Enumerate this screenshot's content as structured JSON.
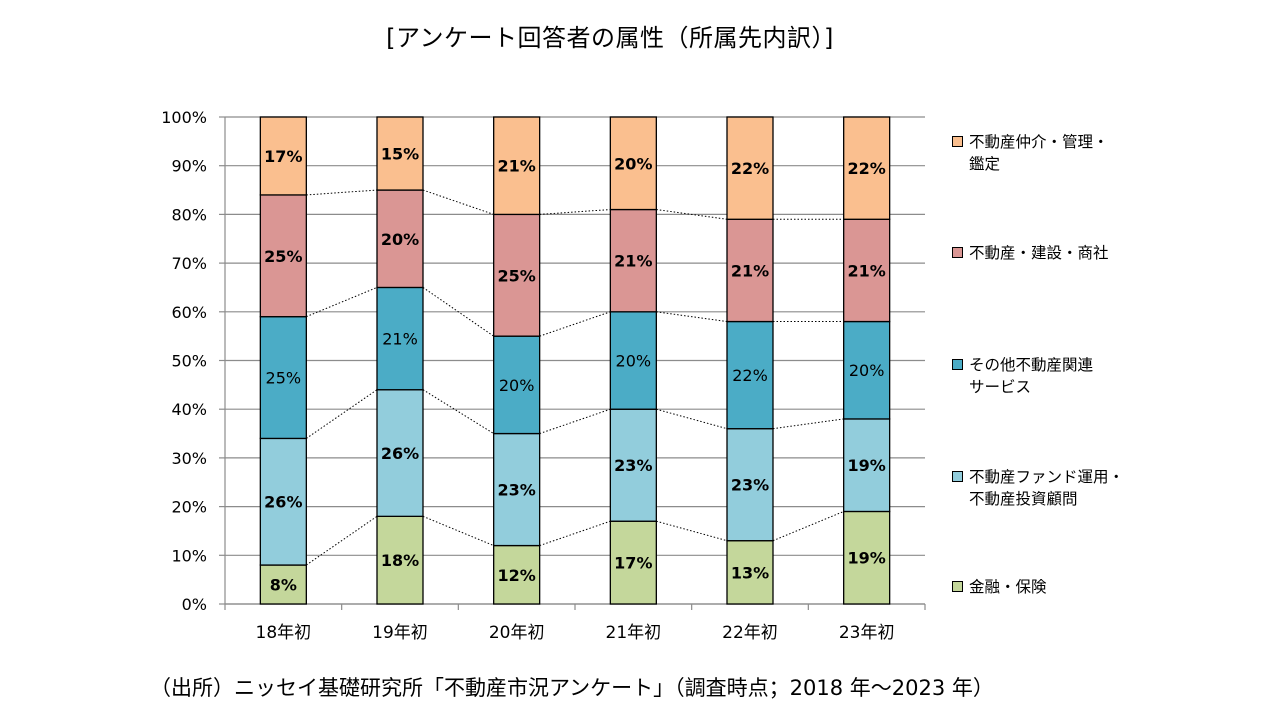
{
  "chart_data": {
    "type": "bar",
    "stacked": true,
    "title": "[アンケート回答者の属性（所属先内訳）]",
    "categories": [
      "18年初",
      "19年初",
      "20年初",
      "21年初",
      "22年初",
      "23年初"
    ],
    "ylim": [
      0,
      100
    ],
    "yticks": [
      "0%",
      "10%",
      "20%",
      "30%",
      "40%",
      "50%",
      "60%",
      "70%",
      "80%",
      "90%",
      "100%"
    ],
    "grid": true,
    "legend_position": "right",
    "series": [
      {
        "name": "金融・保険",
        "color": "#c4d79b",
        "bold": true,
        "values": [
          8,
          18,
          12,
          17,
          13,
          19
        ],
        "labels": [
          "8%",
          "18%",
          "12%",
          "17%",
          "13%",
          "19%"
        ]
      },
      {
        "name": "不動産ファンド運用・\n不動産投資顧問",
        "color": "#92cddc",
        "bold": true,
        "values": [
          26,
          26,
          23,
          23,
          23,
          19
        ],
        "labels": [
          "26%",
          "26%",
          "23%",
          "23%",
          "23%",
          "19%"
        ]
      },
      {
        "name": "その他不動産関連\nサービス",
        "color": "#4bacc6",
        "bold": false,
        "values": [
          25,
          21,
          20,
          20,
          22,
          20
        ],
        "labels": [
          "25%",
          "21%",
          "20%",
          "20%",
          "22%",
          "20%"
        ]
      },
      {
        "name": "不動産・建設・商社",
        "color": "#da9694",
        "bold": true,
        "values": [
          25,
          20,
          25,
          21,
          21,
          21
        ],
        "labels": [
          "25%",
          "20%",
          "25%",
          "21%",
          "21%",
          "21%"
        ]
      },
      {
        "name": "不動産仲介・管理・\n鑑定",
        "color": "#fabf8f",
        "bold": true,
        "values": [
          17,
          15,
          21,
          20,
          22,
          22
        ],
        "labels": [
          "17%",
          "15%",
          "21%",
          "20%",
          "22%",
          "22%"
        ]
      }
    ]
  },
  "source_note": "（出所）ニッセイ基礎研究所「不動産市況アンケート」（調査時点；2018 年～2023 年）"
}
